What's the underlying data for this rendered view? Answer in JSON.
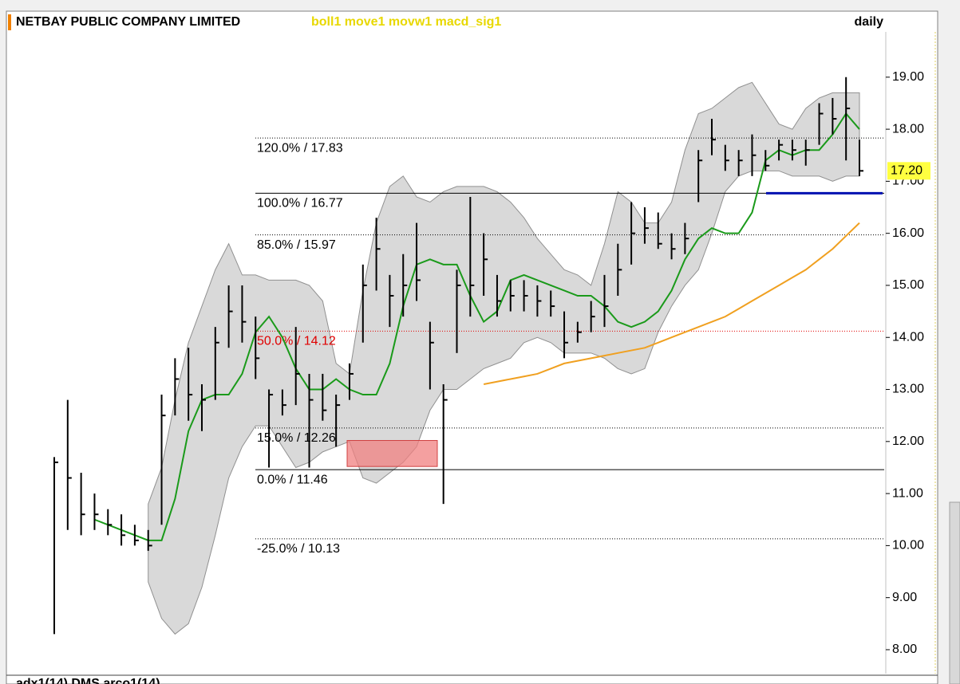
{
  "chart_data": {
    "type": "ohlc",
    "title": "NETBAY PUBLIC COMPANY LIMITED",
    "indicators": "boll1 move1 movw1 macd_sig1",
    "period": "daily",
    "lower_panel_title": "adx1(14) DMS  arco1(14)",
    "ylim": [
      7.54,
      19.87
    ],
    "yticks": [
      {
        "value": 8,
        "label": "8.00"
      },
      {
        "value": 9,
        "label": "9.00"
      },
      {
        "value": 10,
        "label": "10.00"
      },
      {
        "value": 11,
        "label": "11.00"
      },
      {
        "value": 12,
        "label": "12.00"
      },
      {
        "value": 13,
        "label": "13.00"
      },
      {
        "value": 14,
        "label": "14.00"
      },
      {
        "value": 15,
        "label": "15.00"
      },
      {
        "value": 16,
        "label": "16.00"
      },
      {
        "value": 17,
        "label": "17.00"
      },
      {
        "value": 18,
        "label": "18.00"
      },
      {
        "value": 19,
        "label": "19.00"
      }
    ],
    "bar_color": "#000000",
    "high": [
      11.7,
      12.8,
      11.4,
      11.0,
      10.7,
      10.6,
      10.4,
      10.3,
      12.9,
      13.6,
      13.8,
      13.1,
      14.2,
      15.0,
      15.0,
      14.4,
      13.0,
      13.0,
      14.2,
      13.3,
      13.3,
      12.9,
      13.5,
      15.4,
      16.3,
      15.2,
      15.6,
      16.2,
      14.3,
      13.1,
      15.3,
      16.7,
      16.0,
      15.2,
      15.1,
      15.1,
      15.0,
      14.9,
      14.5,
      14.3,
      14.7,
      15.2,
      15.8,
      16.6,
      16.5,
      16.4,
      16.0,
      16.2,
      17.6,
      18.2,
      17.7,
      17.6,
      17.9,
      17.6,
      17.8,
      17.8,
      17.8,
      18.5,
      18.6,
      19.0,
      17.8
    ],
    "low": [
      8.3,
      10.3,
      10.2,
      10.3,
      10.2,
      10.0,
      10.0,
      9.9,
      10.4,
      12.5,
      12.4,
      12.2,
      12.8,
      13.8,
      13.9,
      13.2,
      11.5,
      12.5,
      12.7,
      11.5,
      12.4,
      11.9,
      12.8,
      13.9,
      14.9,
      14.2,
      14.4,
      14.7,
      13.0,
      10.8,
      13.7,
      14.4,
      14.8,
      14.4,
      14.5,
      14.5,
      14.4,
      14.4,
      13.6,
      13.9,
      14.1,
      14.2,
      14.8,
      15.4,
      15.8,
      15.7,
      15.5,
      15.6,
      16.6,
      17.5,
      17.2,
      17.1,
      17.1,
      17.2,
      17.4,
      17.4,
      17.3,
      17.7,
      17.9,
      17.4,
      17.1
    ],
    "close": [
      11.6,
      11.3,
      10.6,
      10.6,
      10.4,
      10.2,
      10.1,
      10.0,
      12.5,
      13.2,
      12.9,
      12.8,
      13.9,
      14.5,
      14.3,
      13.6,
      12.9,
      12.7,
      13.3,
      12.8,
      12.6,
      12.7,
      13.3,
      15.0,
      15.7,
      14.8,
      15.0,
      15.1,
      13.9,
      12.8,
      15.0,
      15.0,
      15.5,
      14.7,
      14.8,
      14.8,
      14.7,
      14.6,
      13.9,
      14.1,
      14.4,
      14.6,
      15.3,
      16.0,
      16.1,
      15.8,
      15.7,
      15.9,
      17.4,
      17.8,
      17.4,
      17.4,
      17.5,
      17.3,
      17.7,
      17.6,
      17.6,
      18.3,
      18.2,
      18.4,
      17.2
    ],
    "band_color": "#d9d9d9",
    "boll_upper": [
      null,
      null,
      null,
      null,
      null,
      null,
      null,
      10.8,
      11.5,
      12.8,
      13.9,
      14.6,
      15.3,
      15.8,
      15.2,
      15.2,
      15.1,
      15.1,
      15.1,
      15.0,
      14.7,
      13.5,
      13.3,
      14.9,
      16.2,
      16.9,
      17.1,
      16.7,
      16.6,
      16.8,
      16.9,
      16.9,
      16.9,
      16.8,
      16.6,
      16.3,
      15.9,
      15.6,
      15.3,
      15.2,
      15.0,
      15.8,
      16.8,
      16.6,
      16.2,
      16.2,
      16.6,
      17.6,
      18.3,
      18.4,
      18.6,
      18.8,
      18.9,
      18.5,
      18.1,
      18.0,
      18.4,
      18.6,
      18.7,
      18.7,
      18.7
    ],
    "boll_lower": [
      null,
      null,
      null,
      null,
      null,
      null,
      null,
      9.3,
      8.6,
      8.3,
      8.5,
      9.2,
      10.2,
      11.3,
      11.9,
      12.3,
      12.3,
      11.9,
      11.5,
      11.6,
      11.8,
      11.9,
      12.0,
      11.3,
      11.2,
      11.4,
      11.6,
      11.9,
      12.6,
      13.0,
      13.0,
      13.2,
      13.4,
      13.5,
      13.6,
      13.9,
      14.0,
      13.9,
      13.7,
      13.7,
      13.7,
      13.6,
      13.4,
      13.3,
      13.4,
      14.1,
      14.6,
      15.0,
      15.3,
      16.0,
      16.8,
      17.1,
      17.2,
      17.2,
      17.2,
      17.1,
      17.1,
      17.1,
      17.0,
      17.1,
      17.1
    ],
    "series": [
      {
        "color": "#1a9a1a",
        "values": [
          null,
          null,
          null,
          10.5,
          10.4,
          10.3,
          10.2,
          10.1,
          10.1,
          10.9,
          12.2,
          12.8,
          12.9,
          12.9,
          13.3,
          14.1,
          14.4,
          14.0,
          13.4,
          13.0,
          13.0,
          13.2,
          13.0,
          12.9,
          12.9,
          13.5,
          14.6,
          15.4,
          15.5,
          15.4,
          15.4,
          14.8,
          14.3,
          14.5,
          15.1,
          15.2,
          15.1,
          15.0,
          14.9,
          14.8,
          14.8,
          14.6,
          14.3,
          14.2,
          14.3,
          14.5,
          14.9,
          15.5,
          15.9,
          16.1,
          16.0,
          16.0,
          16.4,
          17.4,
          17.6,
          17.5,
          17.6,
          17.6,
          17.9,
          18.3,
          18.0
        ]
      },
      {
        "color": "#f0a020",
        "values": [
          null,
          null,
          null,
          null,
          null,
          null,
          null,
          null,
          null,
          null,
          null,
          null,
          null,
          null,
          null,
          null,
          null,
          null,
          null,
          null,
          null,
          null,
          null,
          null,
          null,
          null,
          null,
          null,
          null,
          null,
          null,
          null,
          13.1,
          13.15,
          13.2,
          13.25,
          13.3,
          13.4,
          13.5,
          13.55,
          13.6,
          13.65,
          13.7,
          13.75,
          13.8,
          13.9,
          14.0,
          14.1,
          14.2,
          14.3,
          14.4,
          14.55,
          14.7,
          14.85,
          15.0,
          15.15,
          15.3,
          15.5,
          15.7,
          15.95,
          16.2
        ]
      }
    ],
    "levels": [
      {
        "value": 17.83,
        "label": "120.0% / 17.83",
        "color": "#000000",
        "style": "dotted"
      },
      {
        "value": 16.77,
        "label": "100.0% / 16.77",
        "color": "#000000",
        "style": "solid"
      },
      {
        "value": 15.97,
        "label": "85.0% / 15.97",
        "color": "#000000",
        "style": "dotted"
      },
      {
        "value": 14.12,
        "label": "50.0% / 14.12",
        "color": "#e00000",
        "style": "dotted"
      },
      {
        "value": 12.26,
        "label": "15.0% / 12.26",
        "color": "#000000",
        "style": "dotted"
      },
      {
        "value": 11.46,
        "label": "0.0% / 11.46",
        "color": "#000000",
        "style": "solid"
      },
      {
        "value": 10.13,
        "label": "-25.0% / 10.13",
        "color": "#000000",
        "style": "dotted"
      }
    ],
    "support": {
      "value": 16.77,
      "color": "#0010b0"
    },
    "zone": {
      "low": 11.52,
      "high": 12.02,
      "color": "#f08080"
    },
    "last": {
      "value": 17.2,
      "label": "17.20"
    }
  }
}
